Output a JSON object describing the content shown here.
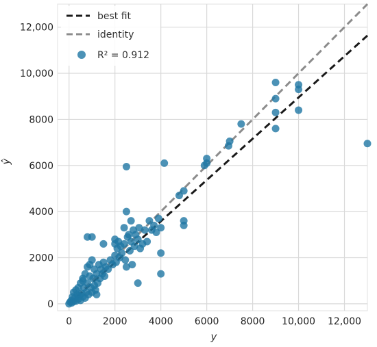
{
  "chart_data": {
    "type": "scatter",
    "xlabel": "y",
    "ylabel": "ŷ",
    "xlim": [
      -500,
      13000
    ],
    "ylim": [
      -300,
      13000
    ],
    "x_ticks": [
      0,
      2000,
      4000,
      6000,
      8000,
      10000,
      12000
    ],
    "x_tick_labels": [
      "0",
      "2000",
      "4000",
      "6000",
      "8000",
      "10,000",
      "12,000"
    ],
    "y_ticks": [
      0,
      2000,
      4000,
      6000,
      8000,
      10000,
      12000
    ],
    "y_tick_labels": [
      "0",
      "2000",
      "4000",
      "6000",
      "8000",
      "10,000",
      "12,000"
    ],
    "grid": true,
    "legend": {
      "position": "top-left",
      "entries": [
        {
          "label": "best fit",
          "style": "dashed",
          "color": "#1a1a1a"
        },
        {
          "label": "identity",
          "style": "dashed",
          "color": "#8c8c8c"
        },
        {
          "label": "R² = 0.912",
          "style": "marker",
          "color": "#1f77a4"
        }
      ]
    },
    "best_fit": {
      "slope": 0.895,
      "intercept": 0
    },
    "identity": {
      "slope": 1,
      "intercept": 0
    },
    "r2_label": "R² = 0.912",
    "colors": {
      "points": "#1f77a4",
      "best_fit": "#1a1a1a",
      "identity": "#8c8c8c",
      "grid": "#d9d9d9"
    },
    "points": [
      [
        0,
        0
      ],
      [
        50,
        80
      ],
      [
        100,
        150
      ],
      [
        120,
        40
      ],
      [
        150,
        300
      ],
      [
        200,
        100
      ],
      [
        200,
        500
      ],
      [
        250,
        250
      ],
      [
        300,
        600
      ],
      [
        300,
        120
      ],
      [
        350,
        400
      ],
      [
        400,
        200
      ],
      [
        400,
        700
      ],
      [
        450,
        350
      ],
      [
        500,
        900
      ],
      [
        500,
        150
      ],
      [
        550,
        450
      ],
      [
        600,
        300
      ],
      [
        600,
        1100
      ],
      [
        650,
        700
      ],
      [
        700,
        250
      ],
      [
        700,
        1300
      ],
      [
        750,
        500
      ],
      [
        800,
        900
      ],
      [
        800,
        1600
      ],
      [
        850,
        400
      ],
      [
        900,
        1200
      ],
      [
        900,
        1700
      ],
      [
        950,
        700
      ],
      [
        1000,
        1900
      ],
      [
        1000,
        500
      ],
      [
        1050,
        1100
      ],
      [
        1100,
        800
      ],
      [
        1100,
        1500
      ],
      [
        1150,
        600
      ],
      [
        1200,
        1300
      ],
      [
        1250,
        900
      ],
      [
        1300,
        1700
      ],
      [
        1350,
        1100
      ],
      [
        1400,
        1500
      ],
      [
        1450,
        1300
      ],
      [
        1500,
        1800
      ],
      [
        1550,
        1200
      ],
      [
        1600,
        1600
      ],
      [
        1700,
        1500
      ],
      [
        1800,
        1900
      ],
      [
        1900,
        1700
      ],
      [
        2000,
        2100
      ],
      [
        2000,
        2600
      ],
      [
        2050,
        1800
      ],
      [
        2100,
        2400
      ],
      [
        2150,
        2700
      ],
      [
        2200,
        2000
      ],
      [
        2250,
        2500
      ],
      [
        2300,
        2200
      ],
      [
        2400,
        2600
      ],
      [
        2450,
        1900
      ],
      [
        2500,
        1600
      ],
      [
        2500,
        5950
      ],
      [
        2550,
        2900
      ],
      [
        2600,
        3000
      ],
      [
        2650,
        2300
      ],
      [
        2700,
        2700
      ],
      [
        2750,
        1700
      ],
      [
        2800,
        3200
      ],
      [
        2850,
        2500
      ],
      [
        2900,
        3000
      ],
      [
        3000,
        900
      ],
      [
        3000,
        2800
      ],
      [
        3050,
        3300
      ],
      [
        3100,
        2400
      ],
      [
        3200,
        2600
      ],
      [
        3300,
        3200
      ],
      [
        3400,
        2700
      ],
      [
        3500,
        3600
      ],
      [
        3600,
        3200
      ],
      [
        3700,
        3400
      ],
      [
        3800,
        3100
      ],
      [
        3900,
        3700
      ],
      [
        4000,
        2200
      ],
      [
        4000,
        1300
      ],
      [
        4000,
        3300
      ],
      [
        4150,
        6100
      ],
      [
        2500,
        4000
      ],
      [
        2000,
        2800
      ],
      [
        1500,
        2600
      ],
      [
        1000,
        2900
      ],
      [
        800,
        2900
      ],
      [
        2400,
        3300
      ],
      [
        2700,
        3600
      ],
      [
        4800,
        4700
      ],
      [
        5000,
        4900
      ],
      [
        5000,
        3600
      ],
      [
        5000,
        3400
      ],
      [
        5900,
        6000
      ],
      [
        6000,
        6300
      ],
      [
        6000,
        6100
      ],
      [
        6950,
        6850
      ],
      [
        7000,
        7050
      ],
      [
        7500,
        7800
      ],
      [
        9000,
        9600
      ],
      [
        9000,
        8900
      ],
      [
        9000,
        8300
      ],
      [
        9000,
        7600
      ],
      [
        10000,
        9500
      ],
      [
        10000,
        9300
      ],
      [
        10000,
        8400
      ],
      [
        13000,
        6950
      ],
      [
        1200,
        400
      ],
      [
        600,
        1000
      ]
    ]
  }
}
